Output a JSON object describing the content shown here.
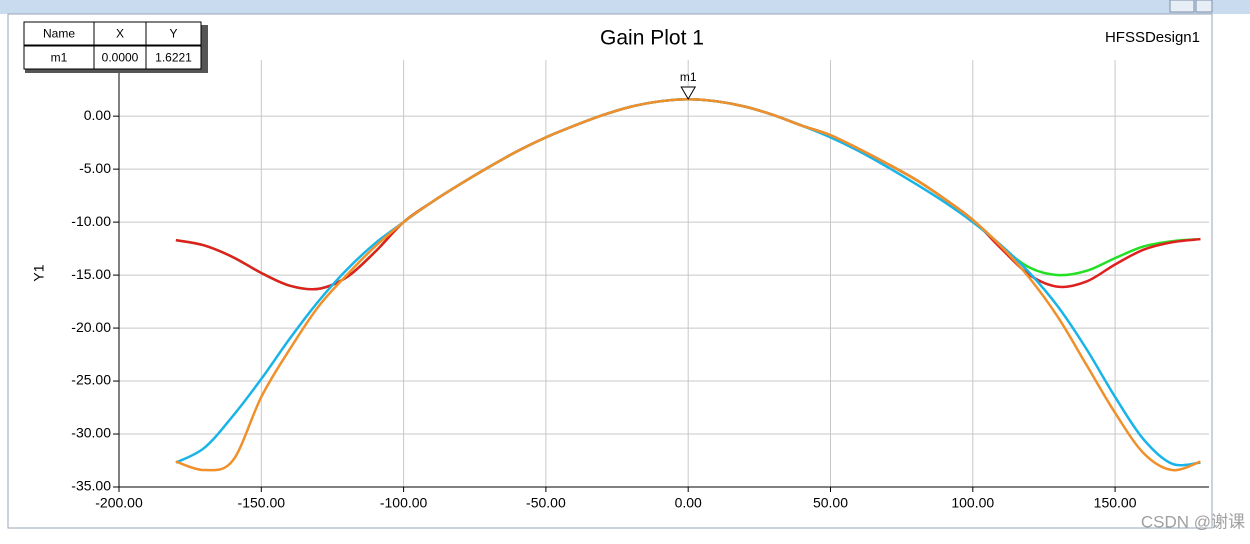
{
  "chart_data": {
    "type": "line",
    "title": "Gain Plot 1",
    "subtitle": "HFSSDesign1",
    "y_label": "Y1",
    "watermark": "CSDN @谢课",
    "x": [
      -180,
      -170,
      -160,
      -150,
      -140,
      -130,
      -120,
      -110,
      -100,
      -90,
      -80,
      -70,
      -60,
      -50,
      -40,
      -30,
      -20,
      -10,
      0,
      10,
      20,
      30,
      40,
      50,
      60,
      70,
      80,
      90,
      100,
      110,
      120,
      130,
      140,
      150,
      160,
      170,
      180
    ],
    "series": [
      {
        "color": "#22e022",
        "values": [
          -11.7,
          -12.2,
          -13.3,
          -14.8,
          -16.0,
          -16.3,
          -15.2,
          -12.8,
          -10.0,
          -8.1,
          -6.4,
          -4.8,
          -3.3,
          -2.0,
          -0.9,
          0.1,
          0.9,
          1.4,
          1.6,
          1.4,
          0.9,
          0.1,
          -0.9,
          -1.8,
          -3.1,
          -4.5,
          -6.0,
          -7.8,
          -9.8,
          -12.3,
          -14.3,
          -15.0,
          -14.6,
          -13.4,
          -12.3,
          -11.8,
          -11.6
        ]
      },
      {
        "color": "#e02020",
        "values": [
          -11.7,
          -12.2,
          -13.3,
          -14.8,
          -16.0,
          -16.3,
          -15.2,
          -12.8,
          -10.0,
          -8.1,
          -6.4,
          -4.8,
          -3.3,
          -2.0,
          -0.9,
          0.1,
          0.9,
          1.4,
          1.6,
          1.4,
          0.9,
          0.1,
          -0.9,
          -1.8,
          -3.1,
          -4.5,
          -6.0,
          -7.8,
          -9.8,
          -12.5,
          -15.0,
          -16.1,
          -15.6,
          -14.0,
          -12.6,
          -11.9,
          -11.6
        ]
      },
      {
        "color": "#18b4e8",
        "values": [
          -32.7,
          -31.3,
          -28.3,
          -24.8,
          -21.0,
          -17.5,
          -14.5,
          -12.0,
          -10.0,
          -8.1,
          -6.4,
          -4.8,
          -3.3,
          -2.0,
          -0.9,
          0.1,
          0.9,
          1.4,
          1.6,
          1.4,
          0.9,
          0.1,
          -0.9,
          -2.0,
          -3.3,
          -4.8,
          -6.4,
          -8.1,
          -10.0,
          -12.2,
          -14.8,
          -18.0,
          -22.0,
          -26.5,
          -30.5,
          -32.8,
          -32.7
        ]
      },
      {
        "color": "#f0902a",
        "values": [
          -32.6,
          -33.4,
          -32.5,
          -26.5,
          -22.0,
          -18.0,
          -15.0,
          -12.3,
          -10.0,
          -8.1,
          -6.4,
          -4.8,
          -3.3,
          -2.0,
          -0.9,
          0.1,
          0.9,
          1.4,
          1.6,
          1.4,
          0.9,
          0.1,
          -0.9,
          -1.8,
          -3.1,
          -4.5,
          -6.0,
          -7.8,
          -9.8,
          -12.3,
          -15.3,
          -19.0,
          -23.5,
          -28.0,
          -31.8,
          -33.4,
          -32.6
        ]
      }
    ],
    "xlim": [
      -200,
      183
    ],
    "ylim": [
      -35,
      5.3
    ],
    "xticks": [
      {
        "value": -200,
        "label": "-200.00"
      },
      {
        "value": -150,
        "label": "-150.00"
      },
      {
        "value": -100,
        "label": "-100.00"
      },
      {
        "value": -50,
        "label": "-50.00"
      },
      {
        "value": 0,
        "label": "0.00"
      },
      {
        "value": 50,
        "label": "50.00"
      },
      {
        "value": 100,
        "label": "100.00"
      },
      {
        "value": 150,
        "label": "150.00"
      }
    ],
    "yticks": [
      {
        "value": 0,
        "label": "0.00"
      },
      {
        "value": -5,
        "label": "-5.00"
      },
      {
        "value": -10,
        "label": "-10.00"
      },
      {
        "value": -15,
        "label": "-15.00"
      },
      {
        "value": -20,
        "label": "-20.00"
      },
      {
        "value": -25,
        "label": "-25.00"
      },
      {
        "value": -30,
        "label": "-30.00"
      },
      {
        "value": -35,
        "label": "-35.00"
      }
    ],
    "grid": true,
    "markers": [
      {
        "name": "m1",
        "x": 0,
        "y": 1.6221
      }
    ],
    "marker_table": {
      "header": [
        "Name",
        "X",
        "Y"
      ],
      "rows": [
        [
          "m1",
          "0.0000",
          "1.6221"
        ]
      ]
    }
  }
}
